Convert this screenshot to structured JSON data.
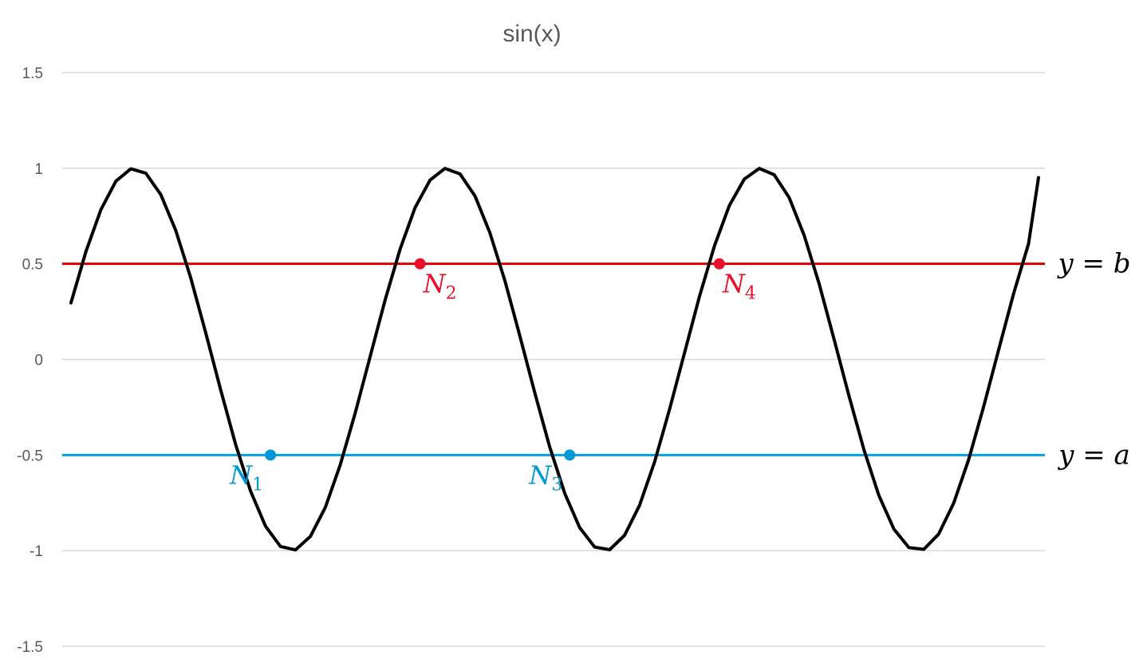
{
  "chart_data": {
    "type": "line",
    "title": "sin(x)",
    "xlabel": "",
    "ylabel": "",
    "ylim": [
      -1.5,
      1.5
    ],
    "xlim": [
      0.3,
      19.7
    ],
    "yticks": [
      1.5,
      1,
      0.5,
      0,
      -0.5,
      -1,
      -1.5
    ],
    "ytick_labels": [
      "1.5",
      "1",
      "0.5",
      "0",
      "-0.5",
      "-1",
      "-1.5"
    ],
    "grid": true,
    "colors": {
      "curve": "#000000",
      "line_b": "#e00000",
      "line_a": "#00a2e0",
      "n_red": "#e8102a",
      "n_blue": "#0099d6",
      "text_dark": "#000000"
    },
    "series": [
      {
        "name": "",
        "x": [
          0.3,
          0.6,
          0.9,
          1.2,
          1.5,
          1.8,
          2.1,
          2.4,
          2.7,
          3.0,
          3.3,
          3.6,
          3.9,
          4.2,
          4.5,
          4.8,
          5.1,
          5.4,
          5.7,
          6.0,
          6.3,
          6.6,
          6.9,
          7.2,
          7.5,
          7.8,
          8.1,
          8.4,
          8.7,
          9.0,
          9.3,
          9.6,
          9.9,
          10.2,
          10.5,
          10.8,
          11.1,
          11.4,
          11.7,
          12.0,
          12.3,
          12.6,
          12.9,
          13.2,
          13.5,
          13.8,
          14.1,
          14.4,
          14.7,
          15.0,
          15.3,
          15.6,
          15.9,
          16.2,
          16.5,
          16.8,
          17.1,
          17.4,
          17.7,
          18.0,
          18.3,
          18.6,
          18.9,
          19.2,
          19.5,
          19.7
        ],
        "y": [
          0.296,
          0.565,
          0.783,
          0.932,
          0.997,
          0.974,
          0.863,
          0.675,
          0.427,
          0.141,
          -0.158,
          -0.443,
          -0.688,
          -0.872,
          -0.978,
          -0.996,
          -0.926,
          -0.773,
          -0.551,
          -0.279,
          0.017,
          0.312,
          0.578,
          0.794,
          0.938,
          0.999,
          0.97,
          0.855,
          0.662,
          0.412,
          0.124,
          -0.175,
          -0.458,
          -0.7,
          -0.88,
          -0.981,
          -0.995,
          -0.92,
          -0.763,
          -0.537,
          -0.263,
          0.033,
          0.327,
          0.592,
          0.804,
          0.943,
          0.999,
          0.966,
          0.846,
          0.65,
          0.397,
          0.107,
          -0.191,
          -0.473,
          -0.712,
          -0.887,
          -0.984,
          -0.993,
          -0.913,
          -0.751,
          -0.523,
          -0.247,
          0.05,
          0.343,
          0.605,
          0.951
        ]
      }
    ],
    "hlines": [
      {
        "y": 0.5,
        "label_italic": "y",
        "label_eq": "=",
        "label_rhs": "b",
        "color_key": "line_b"
      },
      {
        "y": -0.5,
        "label_italic": "y",
        "label_eq": "=",
        "label_rhs": "a",
        "color_key": "line_a"
      }
    ],
    "points": [
      {
        "name": "N",
        "sub": "1",
        "x": 4.3,
        "y": -0.5,
        "color_key": "n_blue"
      },
      {
        "name": "N",
        "sub": "2",
        "x": 7.3,
        "y": 0.5,
        "color_key": "n_red"
      },
      {
        "name": "N",
        "sub": "3",
        "x": 10.3,
        "y": -0.5,
        "color_key": "n_blue"
      },
      {
        "name": "N",
        "sub": "4",
        "x": 13.3,
        "y": 0.5,
        "color_key": "n_red"
      }
    ]
  }
}
